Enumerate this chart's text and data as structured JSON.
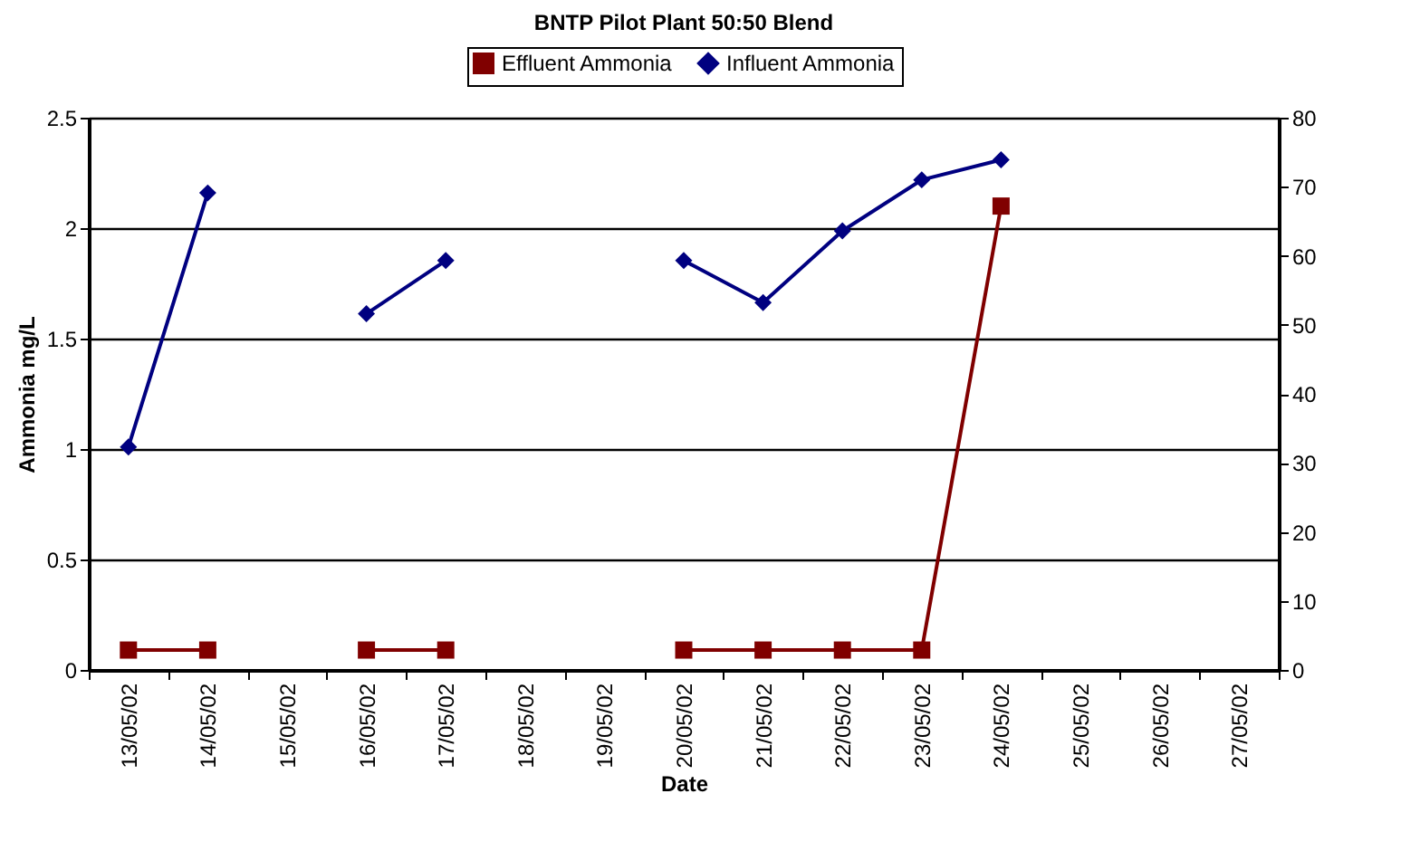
{
  "chart_data": {
    "type": "line",
    "title": "BNTP Pilot Plant 50:50 Blend",
    "xlabel": "Date",
    "ylabel": "Ammonia mg/L",
    "categories": [
      "13/05/02",
      "14/05/02",
      "15/05/02",
      "16/05/02",
      "17/05/02",
      "18/05/02",
      "19/05/02",
      "20/05/02",
      "21/05/02",
      "22/05/02",
      "23/05/02",
      "24/05/02",
      "25/05/02",
      "26/05/02",
      "27/05/02"
    ],
    "series": [
      {
        "name": "Effluent Ammonia",
        "color": "#800000",
        "marker": "square",
        "values": [
          0.09,
          0.09,
          null,
          0.09,
          0.09,
          null,
          null,
          0.09,
          0.09,
          0.09,
          0.09,
          2.1,
          null,
          null,
          null
        ]
      },
      {
        "name": "Influent Ammonia",
        "color": "#000080",
        "marker": "diamond",
        "axis": "y2",
        "values": [
          32.3,
          69.1,
          null,
          51.6,
          59.3,
          null,
          null,
          59.3,
          53.2,
          63.6,
          71.0,
          73.9,
          null,
          null,
          null
        ]
      }
    ],
    "ylim": [
      0,
      2.5
    ],
    "yticks": [
      0,
      0.5,
      1,
      1.5,
      2,
      2.5
    ],
    "y2lim": [
      0,
      80
    ],
    "y2ticks": [
      0,
      10,
      20,
      30,
      40,
      50,
      60,
      70,
      80
    ],
    "grid": "y",
    "legend": "top"
  }
}
